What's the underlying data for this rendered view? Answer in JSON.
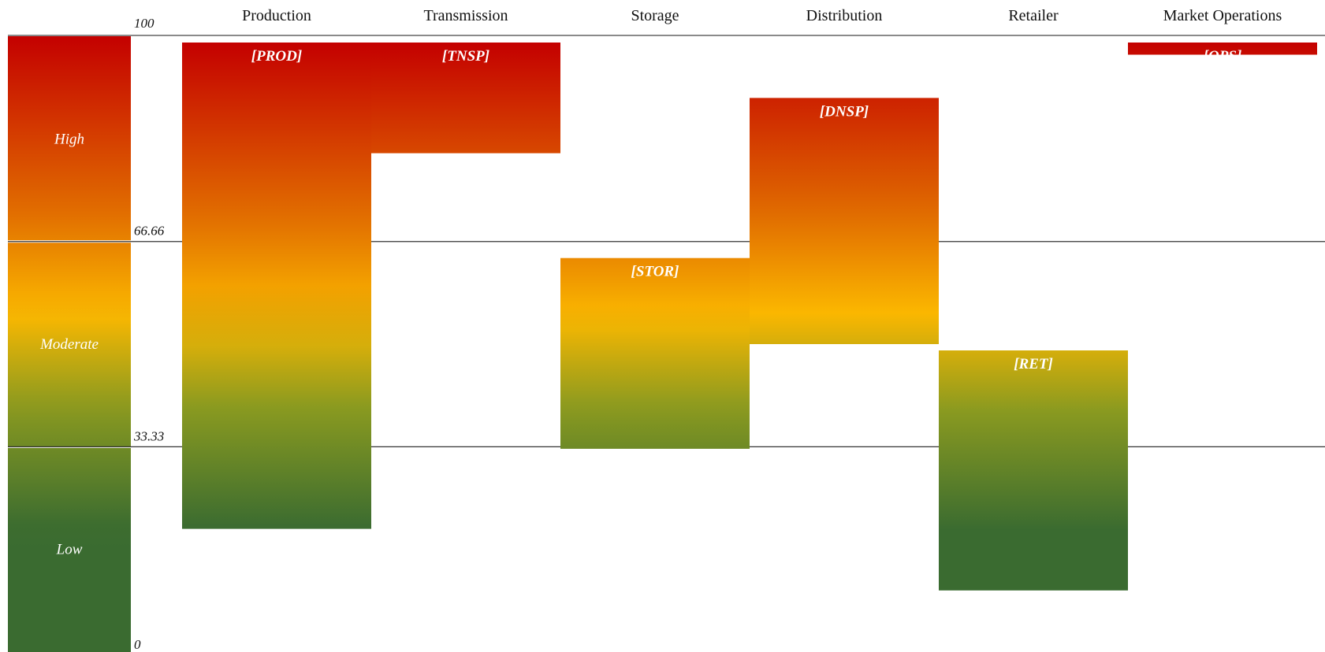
{
  "chart_data": {
    "type": "bar",
    "subtype": "floating-range",
    "y_range": [
      0,
      100
    ],
    "thresholds": [
      33.33,
      66.66
    ],
    "y_tick_labels": [
      "100",
      "66.66",
      "33.33",
      "0"
    ],
    "bands": [
      {
        "name": "High",
        "from": 66.66,
        "to": 100
      },
      {
        "name": "Moderate",
        "from": 33.33,
        "to": 66.66
      },
      {
        "name": "Low",
        "from": 0,
        "to": 33.33
      }
    ],
    "categories": [
      "Production",
      "Transmission",
      "Storage",
      "Distribution",
      "Retailer",
      "Market Operations"
    ],
    "bars": [
      {
        "category": "Production",
        "label": "[PROD]",
        "low": 20,
        "high": 100
      },
      {
        "category": "Transmission",
        "label": "[TNSP]",
        "low": 81,
        "high": 100
      },
      {
        "category": "Storage",
        "label": "[STOR]",
        "low": 33,
        "high": 65
      },
      {
        "category": "Distribution",
        "label": "[DNSP]",
        "low": 50,
        "high": 91
      },
      {
        "category": "Retailer",
        "label": "[RET]",
        "low": 10,
        "high": 50
      },
      {
        "category": "Market Operations",
        "label": "[OPS]",
        "low": 97,
        "high": 100
      }
    ],
    "colors": {
      "high": "#c40000",
      "mid_high": "#e06a00",
      "moderate": "#fbb800",
      "mid_low": "#8a9a20",
      "low": "#3a6b30"
    },
    "grid": "threshold lines only",
    "legend": "left color scale"
  }
}
